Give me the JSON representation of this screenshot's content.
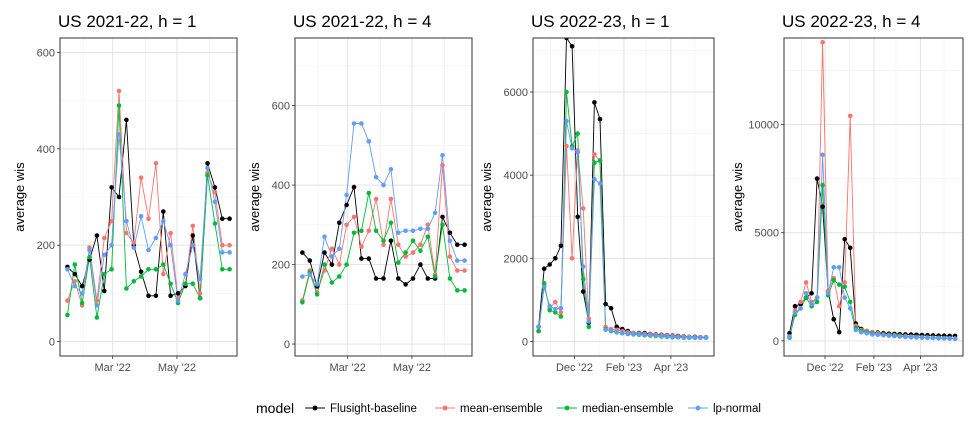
{
  "legend": {
    "title": "model",
    "items": [
      {
        "label": "Flusight-baseline",
        "color": "#000000"
      },
      {
        "label": "mean-ensemble",
        "color": "#F8766D"
      },
      {
        "label": "median-ensemble",
        "color": "#00BA38"
      },
      {
        "label": "lp-normal",
        "color": "#619CFF"
      }
    ]
  },
  "chart_data": [
    {
      "type": "line",
      "title": "US 2021-22, h = 1",
      "xlabel": "",
      "ylabel": "average wis",
      "xlim": [
        "2022-01-10",
        "2022-06-27"
      ],
      "ylim": [
        -30,
        630
      ],
      "yticks": [
        0,
        200,
        400,
        600
      ],
      "xticks": [
        {
          "date": "2022-03-01",
          "label": "Mar '22"
        },
        {
          "date": "2022-05-01",
          "label": "May '22"
        }
      ],
      "grid": true,
      "x": [
        "2022-01-17",
        "2022-01-24",
        "2022-01-31",
        "2022-02-07",
        "2022-02-14",
        "2022-02-21",
        "2022-02-28",
        "2022-03-07",
        "2022-03-14",
        "2022-03-21",
        "2022-03-28",
        "2022-04-04",
        "2022-04-11",
        "2022-04-18",
        "2022-04-25",
        "2022-05-02",
        "2022-05-09",
        "2022-05-16",
        "2022-05-23",
        "2022-05-30",
        "2022-06-06",
        "2022-06-13",
        "2022-06-20"
      ],
      "series": [
        {
          "name": "Flusight-baseline",
          "color": "#000000",
          "values": [
            155,
            140,
            115,
            170,
            220,
            105,
            320,
            300,
            460,
            200,
            145,
            95,
            95,
            270,
            95,
            100,
            115,
            220,
            90,
            370,
            320,
            255,
            255
          ]
        },
        {
          "name": "mean-ensemble",
          "color": "#F8766D",
          "values": [
            85,
            125,
            75,
            195,
            85,
            215,
            250,
            520,
            225,
            205,
            340,
            255,
            370,
            140,
            225,
            90,
            120,
            240,
            100,
            350,
            310,
            200,
            200
          ]
        },
        {
          "name": "median-ensemble",
          "color": "#00BA38",
          "values": [
            55,
            160,
            80,
            175,
            50,
            140,
            150,
            490,
            110,
            125,
            135,
            150,
            150,
            160,
            120,
            80,
            120,
            120,
            90,
            345,
            245,
            150,
            150
          ]
        },
        {
          "name": "lp-normal",
          "color": "#619CFF",
          "values": [
            150,
            115,
            100,
            190,
            75,
            180,
            200,
            430,
            250,
            195,
            260,
            190,
            215,
            250,
            200,
            85,
            140,
            200,
            130,
            360,
            290,
            185,
            185
          ]
        }
      ]
    },
    {
      "type": "line",
      "title": "US 2021-22, h = 4",
      "xlabel": "",
      "ylabel": "average wis",
      "xlim": [
        "2022-01-10",
        "2022-06-27"
      ],
      "ylim": [
        -30,
        770
      ],
      "yticks": [
        0,
        200,
        400,
        600
      ],
      "xticks": [
        {
          "date": "2022-03-01",
          "label": "Mar '22"
        },
        {
          "date": "2022-05-01",
          "label": "May '22"
        }
      ],
      "grid": true,
      "x": [
        "2022-01-17",
        "2022-01-24",
        "2022-01-31",
        "2022-02-07",
        "2022-02-14",
        "2022-02-21",
        "2022-02-28",
        "2022-03-07",
        "2022-03-14",
        "2022-03-21",
        "2022-03-28",
        "2022-04-04",
        "2022-04-11",
        "2022-04-18",
        "2022-04-25",
        "2022-05-02",
        "2022-05-09",
        "2022-05-16",
        "2022-05-23",
        "2022-05-30",
        "2022-06-06",
        "2022-06-13",
        "2022-06-20"
      ],
      "series": [
        {
          "name": "Flusight-baseline",
          "color": "#000000",
          "values": [
            230,
            210,
            145,
            230,
            200,
            305,
            350,
            395,
            215,
            215,
            165,
            165,
            260,
            165,
            150,
            165,
            200,
            165,
            165,
            320,
            280,
            250,
            250
          ]
        },
        {
          "name": "mean-ensemble",
          "color": "#F8766D",
          "values": [
            110,
            185,
            130,
            185,
            240,
            200,
            300,
            320,
            245,
            285,
            365,
            250,
            365,
            250,
            220,
            230,
            250,
            300,
            175,
            450,
            220,
            185,
            185
          ]
        },
        {
          "name": "median-ensemble",
          "color": "#00BA38",
          "values": [
            105,
            180,
            125,
            200,
            155,
            170,
            200,
            280,
            285,
            380,
            285,
            260,
            305,
            205,
            230,
            260,
            235,
            270,
            170,
            300,
            165,
            135,
            135
          ]
        },
        {
          "name": "lp-normal",
          "color": "#619CFF",
          "values": [
            170,
            175,
            150,
            270,
            220,
            240,
            375,
            555,
            555,
            510,
            420,
            400,
            440,
            280,
            285,
            285,
            290,
            290,
            330,
            475,
            260,
            210,
            210
          ]
        }
      ]
    },
    {
      "type": "line",
      "title": "US 2022-23, h = 1",
      "xlabel": "",
      "ylabel": "average wis",
      "xlim": [
        "2022-10-10",
        "2023-05-25"
      ],
      "ylim": [
        -350,
        7300
      ],
      "yticks": [
        0,
        2000,
        4000,
        6000
      ],
      "xticks": [
        {
          "date": "2022-12-01",
          "label": "Dec '22"
        },
        {
          "date": "2023-02-01",
          "label": "Feb '23"
        },
        {
          "date": "2023-04-01",
          "label": "Apr '23"
        }
      ],
      "grid": true,
      "x": [
        "2022-10-17",
        "2022-10-24",
        "2022-10-31",
        "2022-11-07",
        "2022-11-14",
        "2022-11-21",
        "2022-11-28",
        "2022-12-05",
        "2022-12-12",
        "2022-12-19",
        "2022-12-26",
        "2023-01-02",
        "2023-01-09",
        "2023-01-16",
        "2023-01-23",
        "2023-01-30",
        "2023-02-06",
        "2023-02-13",
        "2023-02-20",
        "2023-02-27",
        "2023-03-06",
        "2023-03-13",
        "2023-03-20",
        "2023-03-27",
        "2023-04-03",
        "2023-04-10",
        "2023-04-17",
        "2023-04-24",
        "2023-05-01",
        "2023-05-08",
        "2023-05-15"
      ],
      "series": [
        {
          "name": "Flusight-baseline",
          "color": "#000000",
          "values": [
            350,
            1750,
            1850,
            2000,
            2300,
            7400,
            7100,
            3000,
            1200,
            450,
            5750,
            5350,
            900,
            800,
            350,
            300,
            250,
            200,
            200,
            200,
            180,
            170,
            160,
            150,
            140,
            130,
            120,
            110,
            110,
            100,
            100
          ]
        },
        {
          "name": "mean-ensemble",
          "color": "#F8766D",
          "values": [
            250,
            1350,
            800,
            950,
            700,
            4700,
            2000,
            4600,
            3200,
            550,
            4500,
            4350,
            350,
            300,
            280,
            250,
            220,
            200,
            190,
            180,
            170,
            160,
            150,
            140,
            130,
            120,
            110,
            110,
            100,
            100,
            100
          ]
        },
        {
          "name": "median-ensemble",
          "color": "#00BA38",
          "values": [
            250,
            1400,
            750,
            700,
            600,
            6000,
            4700,
            5000,
            1500,
            350,
            4300,
            4350,
            300,
            250,
            220,
            200,
            180,
            170,
            160,
            150,
            140,
            130,
            120,
            110,
            100,
            100,
            90,
            90,
            90,
            90,
            90
          ]
        },
        {
          "name": "lp-normal",
          "color": "#619CFF",
          "values": [
            350,
            1300,
            850,
            780,
            800,
            5300,
            4650,
            4550,
            1800,
            480,
            3900,
            3800,
            280,
            260,
            230,
            200,
            190,
            180,
            170,
            160,
            150,
            140,
            130,
            120,
            110,
            100,
            90,
            90,
            90,
            90,
            90
          ]
        }
      ]
    },
    {
      "type": "line",
      "title": "US 2022-23, h = 4",
      "xlabel": "",
      "ylabel": "average wis",
      "xlim": [
        "2022-10-10",
        "2023-05-25"
      ],
      "ylim": [
        -700,
        14000
      ],
      "yticks": [
        0,
        5000,
        10000
      ],
      "xticks": [
        {
          "date": "2022-12-01",
          "label": "Dec '22"
        },
        {
          "date": "2023-02-01",
          "label": "Feb '23"
        },
        {
          "date": "2023-04-01",
          "label": "Apr '23"
        }
      ],
      "grid": true,
      "x": [
        "2022-10-17",
        "2022-10-24",
        "2022-10-31",
        "2022-11-07",
        "2022-11-14",
        "2022-11-21",
        "2022-11-28",
        "2022-12-05",
        "2022-12-12",
        "2022-12-19",
        "2022-12-26",
        "2023-01-02",
        "2023-01-09",
        "2023-01-16",
        "2023-01-23",
        "2023-01-30",
        "2023-02-06",
        "2023-02-13",
        "2023-02-20",
        "2023-02-27",
        "2023-03-06",
        "2023-03-13",
        "2023-03-20",
        "2023-03-27",
        "2023-04-03",
        "2023-04-10",
        "2023-04-17",
        "2023-04-24",
        "2023-05-01",
        "2023-05-08",
        "2023-05-15"
      ],
      "series": [
        {
          "name": "Flusight-baseline",
          "color": "#000000",
          "values": [
            350,
            1600,
            1700,
            2000,
            2200,
            7500,
            6200,
            2300,
            1000,
            400,
            4700,
            4300,
            800,
            550,
            450,
            400,
            380,
            350,
            330,
            320,
            310,
            300,
            290,
            280,
            270,
            260,
            250,
            240,
            240,
            230,
            230
          ]
        },
        {
          "name": "mean-ensemble",
          "color": "#F8766D",
          "values": [
            200,
            1400,
            1800,
            2700,
            1800,
            2000,
            13800,
            2300,
            2900,
            1600,
            2700,
            10400,
            700,
            500,
            450,
            400,
            350,
            300,
            280,
            260,
            240,
            220,
            200,
            180,
            170,
            160,
            150,
            140,
            130,
            120,
            110
          ]
        },
        {
          "name": "median-ensemble",
          "color": "#00BA38",
          "values": [
            150,
            1200,
            1500,
            2000,
            1600,
            1800,
            7200,
            2100,
            2800,
            2600,
            2500,
            1800,
            600,
            450,
            400,
            350,
            300,
            280,
            260,
            240,
            220,
            200,
            180,
            170,
            160,
            150,
            140,
            130,
            120,
            110,
            100
          ]
        },
        {
          "name": "lp-normal",
          "color": "#619CFF",
          "values": [
            200,
            1300,
            1500,
            2200,
            1700,
            2000,
            8600,
            2200,
            3400,
            3400,
            2000,
            1500,
            500,
            400,
            350,
            300,
            280,
            260,
            240,
            220,
            200,
            180,
            170,
            160,
            150,
            140,
            130,
            120,
            120,
            110,
            110
          ]
        }
      ]
    }
  ]
}
